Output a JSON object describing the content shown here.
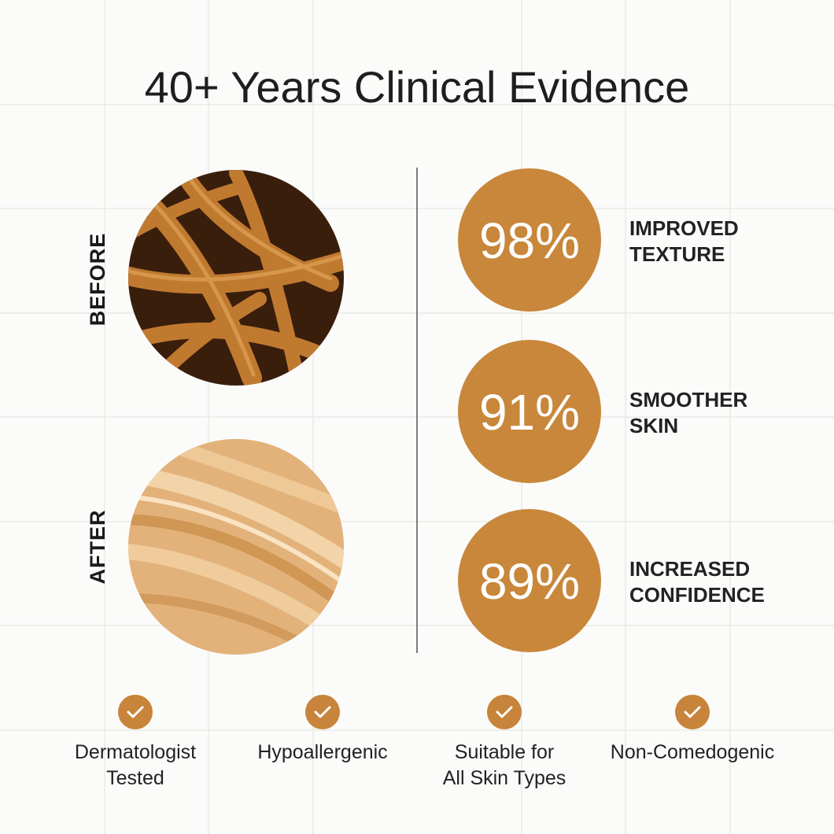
{
  "title": "40+ Years Clinical Evidence",
  "before_label": "BEFORE",
  "after_label": "AFTER",
  "stats": [
    {
      "value": "98%",
      "label": [
        "IMPROVED",
        "TEXTURE"
      ]
    },
    {
      "value": "91%",
      "label": [
        "SMOOTHER",
        "SKIN"
      ]
    },
    {
      "value": "89%",
      "label": [
        "INCREASED",
        "CONFIDENCE"
      ]
    }
  ],
  "features": [
    [
      "Dermatologist",
      "Tested"
    ],
    [
      "Hypoallergenic"
    ],
    [
      "Suitable for",
      "All Skin Types"
    ],
    [
      "Non-Comedogenic"
    ]
  ]
}
